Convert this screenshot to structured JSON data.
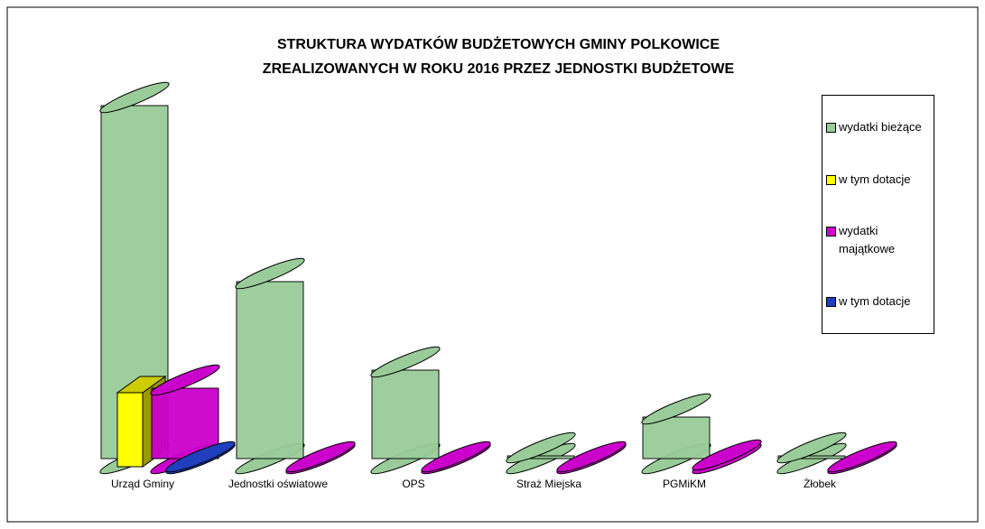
{
  "chart_data": {
    "type": "bar3d",
    "title": [
      "STRUKTURA WYDATKÓW BUDŻETOWYCH GMINY POLKOWICE",
      "ZREALIZOWANYCH W  ROKU 2016 PRZEZ JEDNOSTKI BUDŻETOWE"
    ],
    "categories": [
      "Urząd Gminy",
      "Jednostki oświatowe",
      "OPS",
      "Straż Miejska",
      "PGMiKM",
      "Żłobek"
    ],
    "series": [
      {
        "name": "wydatki bieżące",
        "color": "#99cc99",
        "values": [
          400,
          205,
          107,
          12,
          55,
          12
        ]
      },
      {
        "name": "w tym dotacje",
        "color": "#ffff00",
        "values": [
          82,
          0,
          0,
          0,
          0,
          0
        ]
      },
      {
        "name": "wydatki majątkowe",
        "color": "#cc00cc",
        "values": [
          87,
          2,
          2,
          2,
          4,
          2
        ]
      },
      {
        "name": "w tym dotacje",
        "color": "#1f3fbf",
        "values": [
          2,
          0,
          0,
          0,
          0,
          0
        ]
      }
    ]
  }
}
